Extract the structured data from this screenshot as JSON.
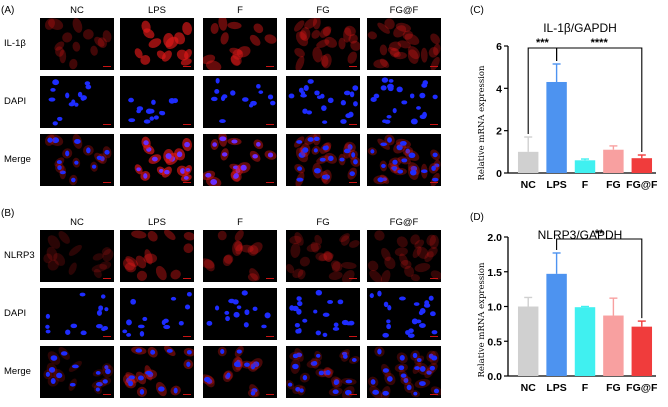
{
  "panels": {
    "A": "(A)",
    "B": "(B)",
    "C": "(C)",
    "D": "(D)"
  },
  "groups": [
    "NC",
    "LPS",
    "F",
    "FG",
    "FG@F"
  ],
  "micro_A": {
    "rows": [
      {
        "label": "IL-1β",
        "channel": "red"
      },
      {
        "label": "DAPI",
        "channel": "blue"
      },
      {
        "label": "Merge",
        "channel": "merge"
      }
    ],
    "red_intensity": [
      0.25,
      0.9,
      0.55,
      0.35,
      0.3
    ]
  },
  "micro_B": {
    "rows": [
      {
        "label": "NLRP3",
        "channel": "red"
      },
      {
        "label": "DAPI",
        "channel": "blue"
      },
      {
        "label": "Merge",
        "channel": "merge"
      }
    ],
    "red_intensity": [
      0.08,
      0.45,
      0.3,
      0.15,
      0.15
    ]
  },
  "colors": {
    "NC": "#d0d0d0",
    "LPS": "#4d93f0",
    "F": "#40f0f0",
    "FG": "#f8a0a0",
    "FG@F": "#f03c3c",
    "nucleus": "#1e2cff",
    "cytoplasm": "#e01818"
  },
  "chart_data": [
    {
      "type": "bar",
      "title": "IL-1β/GAPDH",
      "ylabel": "Relative mRNA expression",
      "categories": [
        "NC",
        "LPS",
        "F",
        "FG",
        "FG@F"
      ],
      "values": [
        1.0,
        4.3,
        0.6,
        1.1,
        0.7
      ],
      "errors": [
        0.7,
        0.85,
        0.06,
        0.18,
        0.15
      ],
      "ylim": [
        0,
        6
      ],
      "yticks": [
        0,
        2,
        4,
        6
      ],
      "significance": [
        {
          "from": "NC",
          "to": "LPS",
          "label": "***"
        },
        {
          "from": "LPS",
          "to": "FG@F",
          "label": "****"
        }
      ]
    },
    {
      "type": "bar",
      "title": "NLRP3/GAPDH",
      "ylabel": "Relative mRNA expression",
      "categories": [
        "NC",
        "LPS",
        "F",
        "FG",
        "FG@F"
      ],
      "values": [
        1.0,
        1.47,
        0.99,
        0.87,
        0.71
      ],
      "errors": [
        0.13,
        0.3,
        0.01,
        0.25,
        0.08
      ],
      "ylim": [
        0,
        2.0
      ],
      "yticks": [
        "0.0",
        "0.5",
        "1.0",
        "1.5",
        "2.0"
      ],
      "significance": [
        {
          "from": "LPS",
          "to": "FG@F",
          "label": "**"
        }
      ]
    }
  ]
}
